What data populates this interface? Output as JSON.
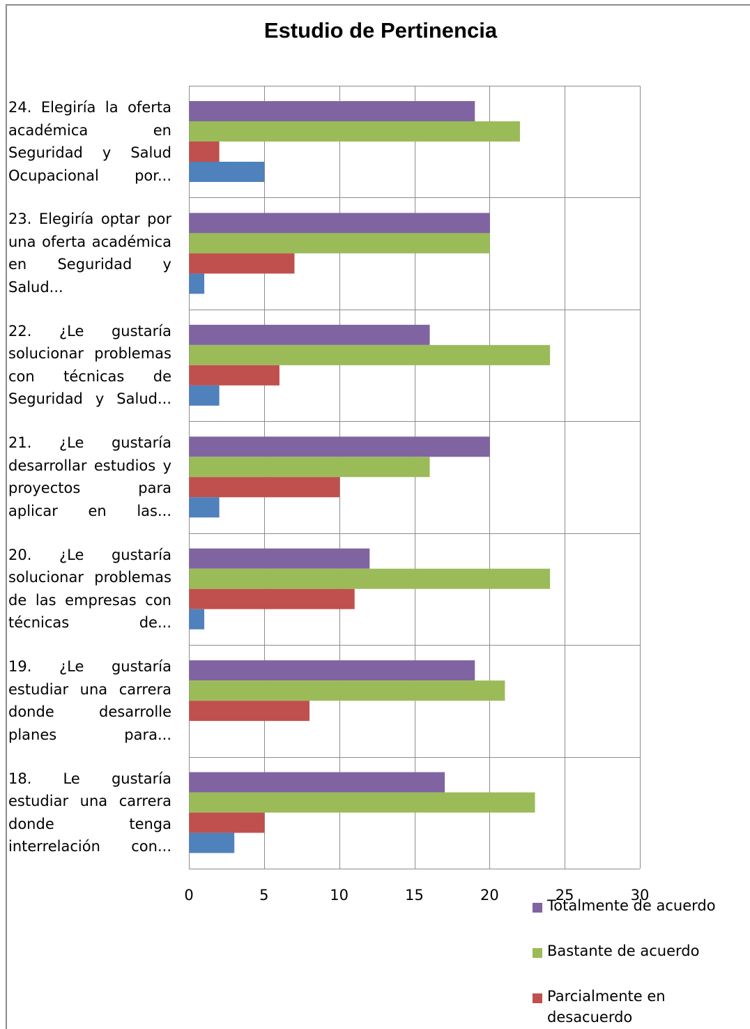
{
  "chart_data": {
    "type": "bar",
    "orientation": "horizontal",
    "title": "Estudio de Pertinencia",
    "categories": [
      "24. Elegiría la oferta académica en Seguridad y Salud Ocupacional por...",
      "23. Elegiría optar por una oferta académica en Seguridad y Salud...",
      "22. ¿Le gustaría solucionar problemas con técnicas de Seguridad y Salud...",
      "21. ¿Le gustaría desarrollar estudios y proyectos para aplicar en las...",
      "20. ¿Le gustaría solucionar problemas de las empresas con técnicas de...",
      "19. ¿Le gustaría estudiar una carrera donde desarrolle planes para...",
      "18. Le gustaría estudiar una carrera donde tenga interrelación con..."
    ],
    "series": [
      {
        "name": "Totalmente de acuerdo",
        "color": "#8064a2",
        "values": [
          19,
          20,
          16,
          20,
          12,
          19,
          17
        ]
      },
      {
        "name": "Bastante de acuerdo",
        "color": "#9bbb59",
        "values": [
          22,
          20,
          24,
          16,
          24,
          21,
          23
        ]
      },
      {
        "name": "Parcialmente en desacuerdo",
        "color": "#c0504d",
        "values": [
          2,
          7,
          6,
          10,
          11,
          8,
          5
        ]
      },
      {
        "name": "",
        "color": "#4f81bd",
        "values": [
          5,
          1,
          2,
          2,
          1,
          0,
          3
        ]
      }
    ],
    "xlim": [
      0,
      30
    ],
    "xticks": [
      "0",
      "5",
      "10",
      "15",
      "20",
      "25",
      "30"
    ],
    "grid": true,
    "legend": "right"
  }
}
